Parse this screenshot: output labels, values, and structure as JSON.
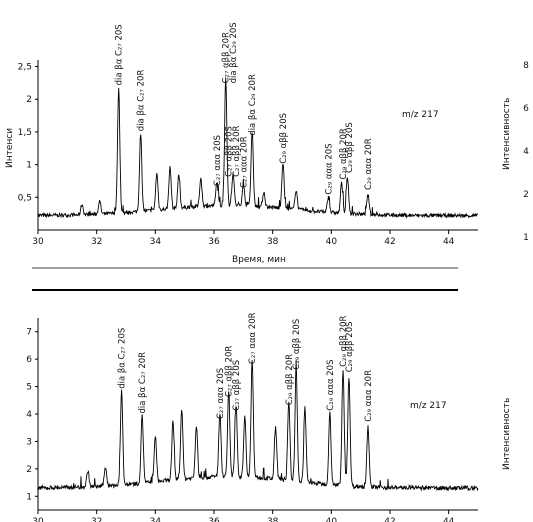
{
  "chart_data": [
    {
      "type": "line",
      "xlabel": "Время, мин",
      "ylabel_left": "Интенси",
      "ylabel_right": "Интенсивность",
      "xlim": [
        30,
        45
      ],
      "ylim": [
        0,
        2.6
      ],
      "x_ticks": [
        "30",
        "32",
        "34",
        "36",
        "38",
        "40",
        "42",
        "44"
      ],
      "y_ticks": [
        "0,5",
        "1",
        "1,5",
        "2",
        "2,5"
      ],
      "right_ticks": [
        "8",
        "6",
        "4",
        "2",
        "1"
      ],
      "mz_label": "m/z 217",
      "baseline": 0.22,
      "peaks": [
        {
          "x": 31.5,
          "y": 0.38
        },
        {
          "x": 32.1,
          "y": 0.42
        },
        {
          "x": 32.75,
          "y": 2.12
        },
        {
          "x": 33.5,
          "y": 1.42
        },
        {
          "x": 34.05,
          "y": 0.78
        },
        {
          "x": 34.5,
          "y": 0.85
        },
        {
          "x": 34.8,
          "y": 0.72
        },
        {
          "x": 35.55,
          "y": 0.65
        },
        {
          "x": 36.1,
          "y": 0.58
        },
        {
          "x": 36.4,
          "y": 2.15
        },
        {
          "x": 36.65,
          "y": 0.72
        },
        {
          "x": 37.0,
          "y": 0.55
        },
        {
          "x": 37.3,
          "y": 1.35
        },
        {
          "x": 37.7,
          "y": 0.45
        },
        {
          "x": 38.35,
          "y": 0.92
        },
        {
          "x": 38.8,
          "y": 0.52
        },
        {
          "x": 39.9,
          "y": 0.45
        },
        {
          "x": 40.35,
          "y": 0.68
        },
        {
          "x": 40.55,
          "y": 0.78
        },
        {
          "x": 41.25,
          "y": 0.52
        }
      ],
      "annotations": [
        {
          "label": "dia βα C₂₇ 20S",
          "x": 32.75,
          "y": 2.12
        },
        {
          "label": "dia βα C₂₇ 20R",
          "x": 33.5,
          "y": 1.42
        },
        {
          "label": "C₂₇ ααα 20S",
          "x": 36.1,
          "y": 0.58
        },
        {
          "label": "C₂₇ αββ 20S",
          "x": 36.5,
          "y": 0.72
        },
        {
          "label": "C₂₇ αββ 20R",
          "x": 36.75,
          "y": 0.72
        },
        {
          "label": "C₂₇ ααα 20R",
          "x": 37.0,
          "y": 0.55
        },
        {
          "label": "C₂₇ αββ 20R",
          "x": 36.4,
          "y": 2.15
        },
        {
          "label": "dia βα C₂₉ 20S",
          "x": 36.65,
          "y": 2.15
        },
        {
          "label": "dia βα C₂₉ 20R",
          "x": 37.3,
          "y": 1.35
        },
        {
          "label": "C₂₉ αββ 20S",
          "x": 38.35,
          "y": 0.92
        },
        {
          "label": "C₂₉ ααα 20S",
          "x": 39.9,
          "y": 0.45
        },
        {
          "label": "C₂₉ αββ 20R",
          "x": 40.4,
          "y": 0.68
        },
        {
          "label": "C₂₉ αββ 20S",
          "x": 40.6,
          "y": 0.78
        },
        {
          "label": "C₂₉ ααα 20R",
          "x": 41.25,
          "y": 0.52
        }
      ]
    },
    {
      "type": "line",
      "ylabel_right": "Интенсивность",
      "xlim": [
        30,
        45
      ],
      "ylim": [
        0.5,
        7.5
      ],
      "x_ticks": [
        "30",
        "32",
        "34",
        "36",
        "38",
        "40",
        "42",
        "44"
      ],
      "y_ticks": [
        "1",
        "2",
        "3",
        "4",
        "5",
        "6",
        "7"
      ],
      "mz_label": "m/z 217",
      "baseline": 1.3,
      "peaks": [
        {
          "x": 31.7,
          "y": 1.9
        },
        {
          "x": 32.3,
          "y": 2.0
        },
        {
          "x": 32.85,
          "y": 4.7
        },
        {
          "x": 33.55,
          "y": 3.8
        },
        {
          "x": 34.0,
          "y": 3.0
        },
        {
          "x": 34.6,
          "y": 3.4
        },
        {
          "x": 34.9,
          "y": 3.9
        },
        {
          "x": 35.4,
          "y": 3.2
        },
        {
          "x": 36.2,
          "y": 3.6
        },
        {
          "x": 36.5,
          "y": 4.4
        },
        {
          "x": 36.75,
          "y": 3.9
        },
        {
          "x": 37.05,
          "y": 3.5
        },
        {
          "x": 37.3,
          "y": 5.6
        },
        {
          "x": 38.1,
          "y": 3.2
        },
        {
          "x": 38.55,
          "y": 4.1
        },
        {
          "x": 38.8,
          "y": 5.4
        },
        {
          "x": 39.1,
          "y": 4.0
        },
        {
          "x": 39.95,
          "y": 3.9
        },
        {
          "x": 40.4,
          "y": 5.5
        },
        {
          "x": 40.6,
          "y": 5.3
        },
        {
          "x": 41.25,
          "y": 3.5
        }
      ],
      "annotations": [
        {
          "label": "dia βα C₂₇ 20S",
          "x": 32.85,
          "y": 4.7
        },
        {
          "label": "dia βα C₂₇ 20R",
          "x": 33.55,
          "y": 3.8
        },
        {
          "label": "C₂₇ ααα 20S",
          "x": 36.2,
          "y": 3.6
        },
        {
          "label": "C₂₇ αββ 20R",
          "x": 36.5,
          "y": 4.4
        },
        {
          "label": "C₂₇ αββ 20S",
          "x": 36.75,
          "y": 3.9
        },
        {
          "label": "C₂₇ ααα 20R",
          "x": 37.3,
          "y": 5.6
        },
        {
          "label": "C₂₉ αββ 20R",
          "x": 38.55,
          "y": 4.1
        },
        {
          "label": "C₂₉ αββ 20S",
          "x": 38.8,
          "y": 5.4
        },
        {
          "label": "C₂₉ ααα 20S",
          "x": 39.95,
          "y": 3.9
        },
        {
          "label": "C₂₉ αββ 20R",
          "x": 40.4,
          "y": 5.5
        },
        {
          "label": "C₂₉ αββ 20S",
          "x": 40.6,
          "y": 5.3
        },
        {
          "label": "C₂₉ ααα 20R",
          "x": 41.25,
          "y": 3.5
        }
      ]
    }
  ]
}
